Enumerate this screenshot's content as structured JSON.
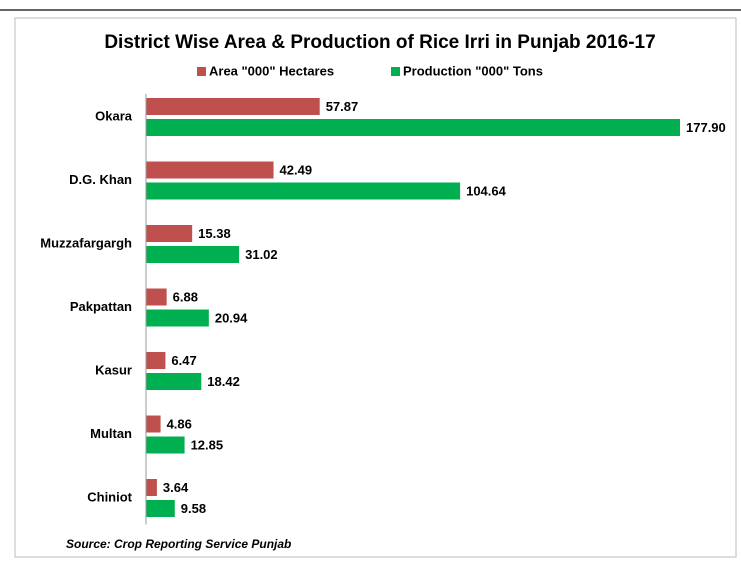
{
  "chart_data": {
    "type": "bar",
    "orientation": "horizontal",
    "title": "District Wise Area & Production of Rice Irri in Punjab 2016-17",
    "categories": [
      "Okara",
      "D.G. Khan",
      "Muzzafargargh",
      "Pakpattan",
      "Kasur",
      "Multan",
      "Chiniot"
    ],
    "series": [
      {
        "name": "Area \"000\" Hectares",
        "color": "#c0504d",
        "values": [
          57.87,
          42.49,
          15.38,
          6.88,
          6.47,
          4.86,
          3.64
        ],
        "value_labels": [
          "57.87",
          "42.49",
          "15.38",
          "6.88",
          "6.47",
          "4.86",
          "3.64"
        ]
      },
      {
        "name": "Production \"000\" Tons",
        "color": "#00b050",
        "values": [
          177.9,
          104.64,
          31.02,
          20.94,
          18.42,
          12.85,
          9.58
        ],
        "value_labels": [
          "177.90",
          "104.64",
          "31.02",
          "20.94",
          "18.42",
          "12.85",
          "9.58"
        ]
      }
    ],
    "source": "Source: Crop Reporting Service Punjab"
  }
}
